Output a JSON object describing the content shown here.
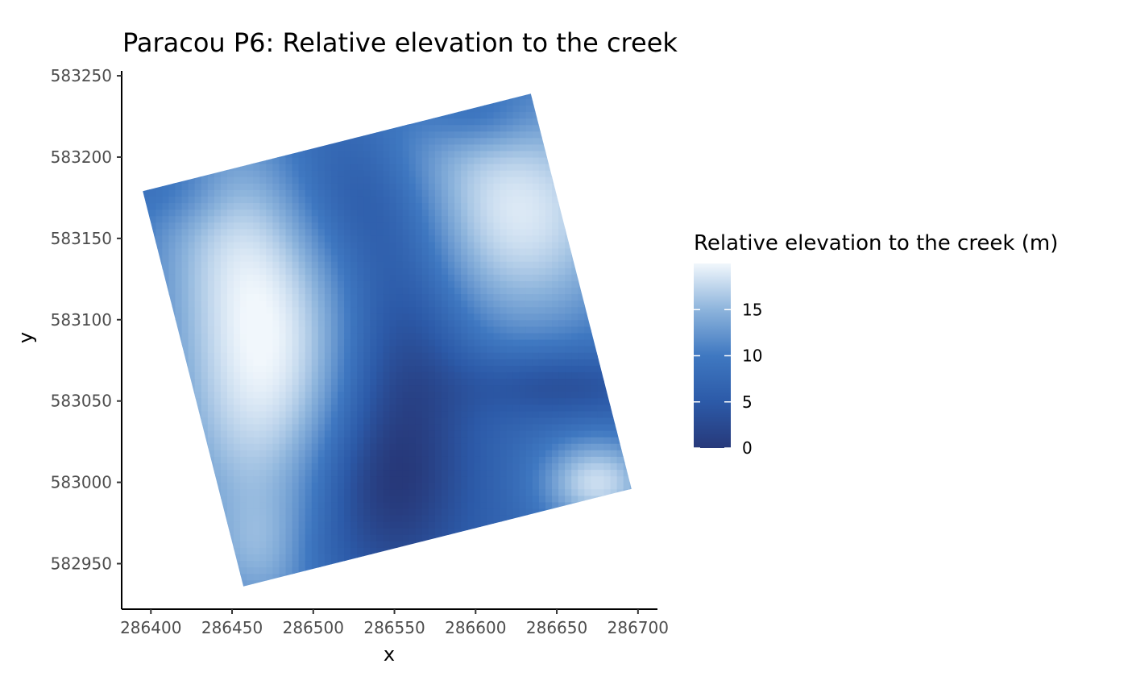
{
  "chart_data": {
    "type": "heatmap",
    "title": "Paracou P6: Relative elevation to the creek",
    "xlabel": "x",
    "ylabel": "y",
    "x_ticks": [
      286400,
      286450,
      286500,
      286550,
      286600,
      286650,
      286700
    ],
    "y_ticks": [
      582950,
      583000,
      583050,
      583100,
      583150,
      583200,
      583250
    ],
    "xlim": [
      286382,
      286712
    ],
    "ylim": [
      582922,
      583253
    ],
    "plot_corners": [
      {
        "x": 286395,
        "y": 583179
      },
      {
        "x": 286634,
        "y": 583239
      },
      {
        "x": 286696,
        "y": 582996
      },
      {
        "x": 286457,
        "y": 582936
      }
    ],
    "legend": {
      "title": "Relative elevation to the creek (m)",
      "ticks": [
        0,
        5,
        10,
        15
      ],
      "range": [
        0,
        20
      ],
      "placement": "right"
    },
    "colors": {
      "low": "#27397a",
      "mid1": "#2c5aa8",
      "mid2": "#3f78c1",
      "mid3": "#8db4dc",
      "high": "#f1f7fc",
      "axis": "#000000"
    },
    "elevation_field": {
      "description_points_note": "",
      "base_level": 7,
      "features": [
        {
          "kind": "hill",
          "x": 286470,
          "y": 583080,
          "sx": 45,
          "sy": 90,
          "amp": 13
        },
        {
          "kind": "hill",
          "x": 286445,
          "y": 583160,
          "sx": 40,
          "sy": 40,
          "amp": 3
        },
        {
          "kind": "hill",
          "x": 286625,
          "y": 583165,
          "sx": 55,
          "sy": 55,
          "amp": 12
        },
        {
          "kind": "hill",
          "x": 286560,
          "y": 583215,
          "sx": 35,
          "sy": 30,
          "amp": 3
        },
        {
          "kind": "hill",
          "x": 286675,
          "y": 583000,
          "sx": 25,
          "sy": 20,
          "amp": 11
        },
        {
          "kind": "hill",
          "x": 286480,
          "y": 582955,
          "sx": 30,
          "sy": 25,
          "amp": 5
        },
        {
          "kind": "valley",
          "x": 286520,
          "y": 583180,
          "sx": 35,
          "sy": 40,
          "amp": 6
        },
        {
          "kind": "valley",
          "x": 286555,
          "y": 583080,
          "sx": 30,
          "sy": 70,
          "amp": 7
        },
        {
          "kind": "valley",
          "x": 286535,
          "y": 582990,
          "sx": 35,
          "sy": 40,
          "amp": 6
        },
        {
          "kind": "valley",
          "x": 286650,
          "y": 583060,
          "sx": 40,
          "sy": 15,
          "amp": 5
        },
        {
          "kind": "valley",
          "x": 286600,
          "y": 583225,
          "sx": 25,
          "sy": 15,
          "amp": 4
        },
        {
          "kind": "valley",
          "x": 286500,
          "y": 582955,
          "sx": 20,
          "sy": 20,
          "amp": 3
        },
        {
          "kind": "valley",
          "x": 286420,
          "y": 583178,
          "sx": 20,
          "sy": 15,
          "amp": 2
        }
      ]
    }
  }
}
